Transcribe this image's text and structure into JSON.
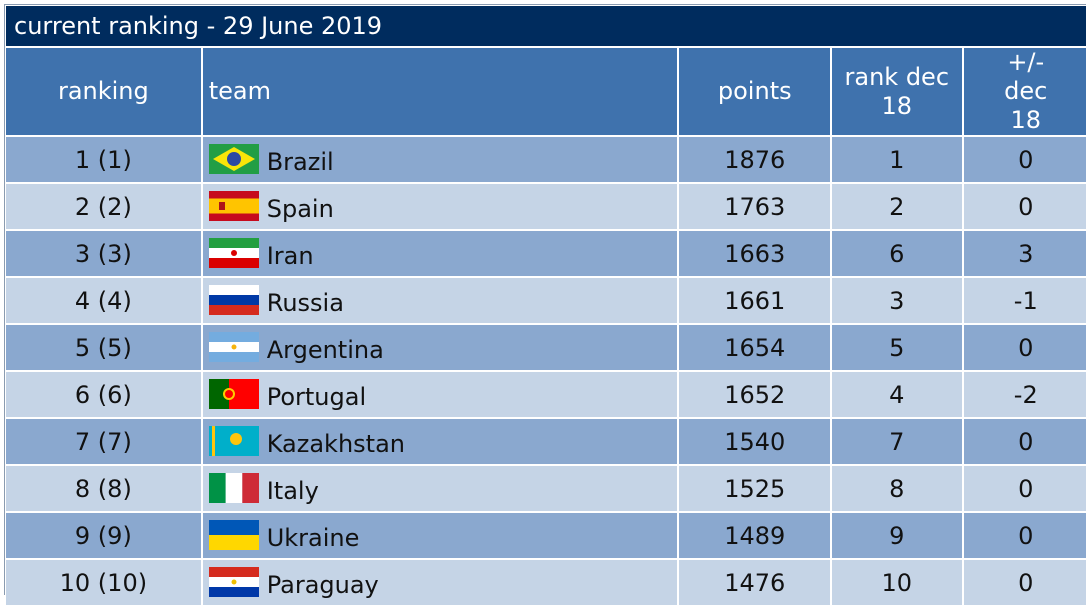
{
  "title": "current ranking - 29 June 2019",
  "table": {
    "columns": [
      "ranking",
      "team",
      "points",
      "rank dec 18",
      "+/- dec 18"
    ],
    "rows": [
      [
        "1 (1)",
        "Brazil",
        1876,
        1,
        0
      ],
      [
        "2 (2)",
        "Spain",
        1763,
        2,
        0
      ],
      [
        "3 (3)",
        "Iran",
        1663,
        6,
        3
      ],
      [
        "4 (4)",
        "Russia",
        1661,
        3,
        -1
      ],
      [
        "5 (5)",
        "Argentina",
        1654,
        5,
        0
      ],
      [
        "6 (6)",
        "Portugal",
        1652,
        4,
        -2
      ],
      [
        "7 (7)",
        "Kazakhstan",
        1540,
        7,
        0
      ],
      [
        "8 (8)",
        "Italy",
        1525,
        8,
        0
      ],
      [
        "9 (9)",
        "Ukraine",
        1489,
        9,
        0
      ],
      [
        "10 (10)",
        "Paraguay",
        1476,
        10,
        0
      ]
    ]
  }
}
